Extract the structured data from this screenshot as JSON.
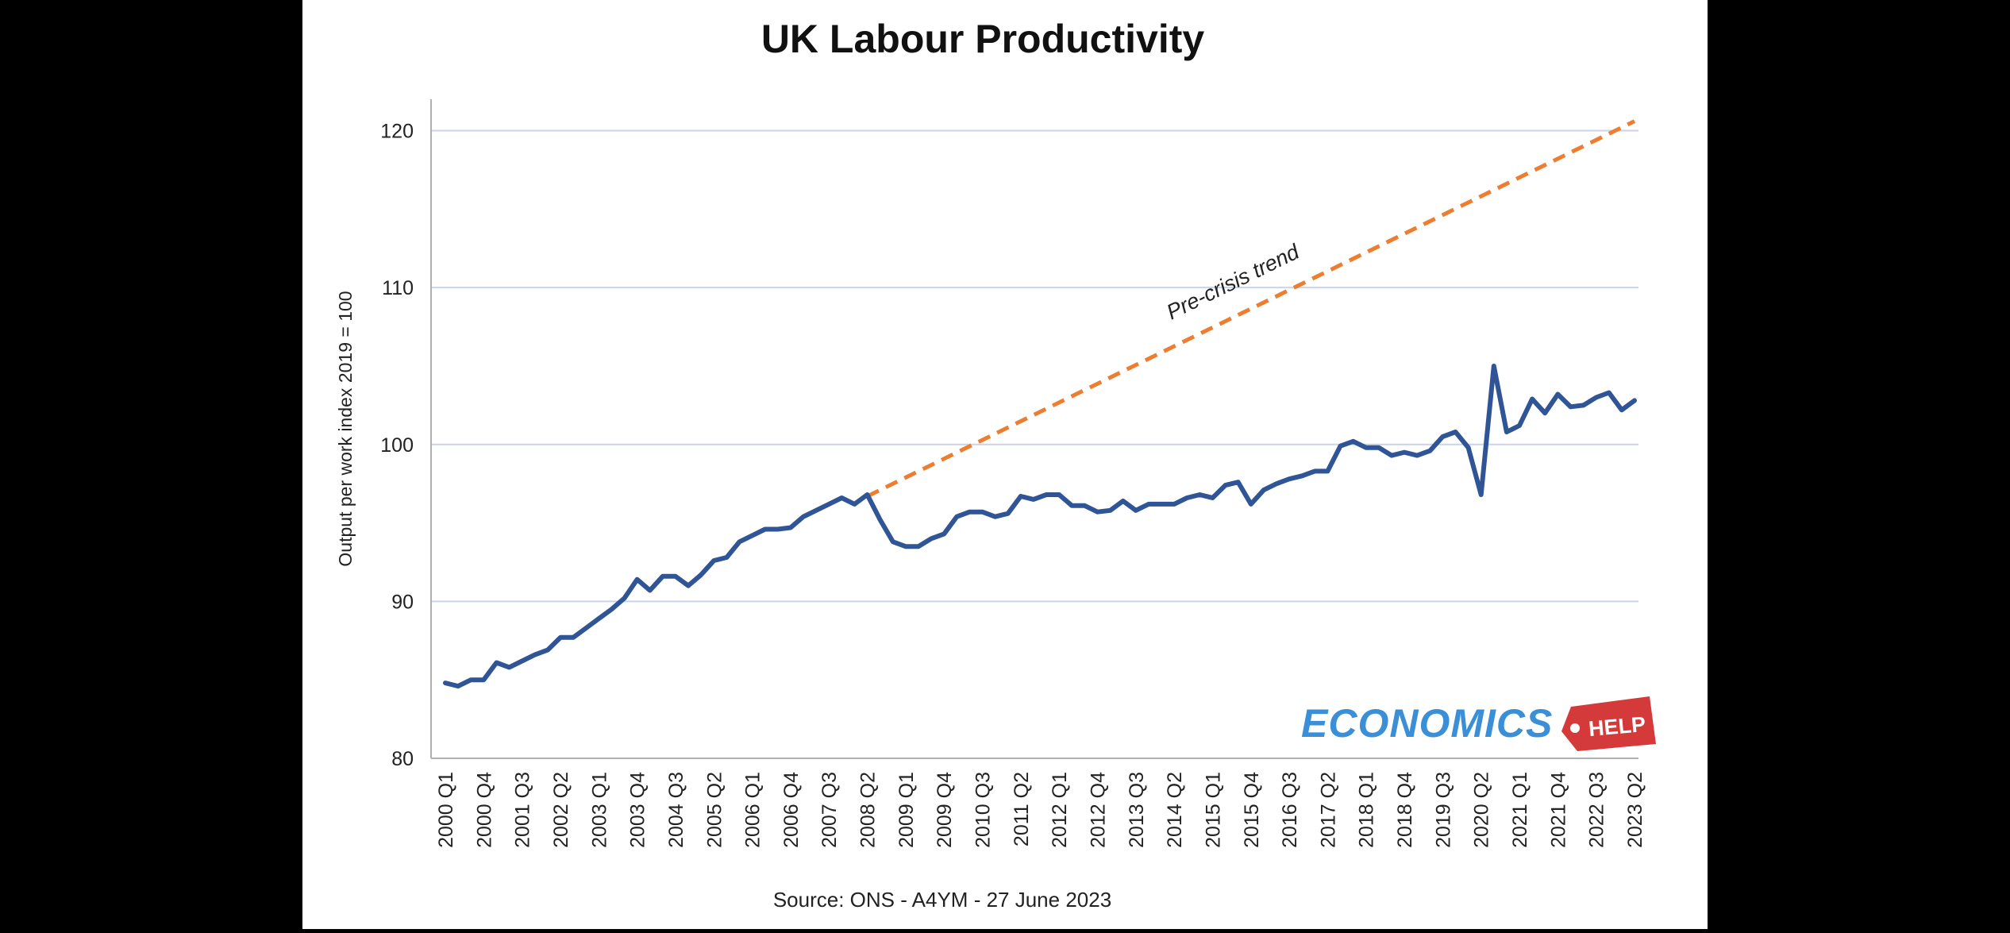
{
  "chart_data": {
    "type": "line",
    "title": "UK Labour Productivity",
    "xlabel": "",
    "ylabel": "Output per work index 2019 = 100",
    "ylim": [
      80,
      122
    ],
    "yticks": [
      80,
      90,
      100,
      110,
      120
    ],
    "grid": true,
    "source": "Source: ONS - A4YM - 27 June 2023",
    "x_tick_labels": [
      "2000 Q1",
      "2000 Q4",
      "2001 Q3",
      "2002 Q2",
      "2003 Q1",
      "2003 Q4",
      "2004 Q3",
      "2005 Q2",
      "2006 Q1",
      "2006 Q4",
      "2007 Q3",
      "2008 Q2",
      "2009 Q1",
      "2009 Q4",
      "2010 Q3",
      "2011 Q2",
      "2012 Q1",
      "2012 Q4",
      "2013 Q3",
      "2014 Q2",
      "2015 Q1",
      "2015 Q4",
      "2016 Q3",
      "2017 Q2",
      "2018 Q1",
      "2018 Q4",
      "2019 Q3",
      "2020 Q2",
      "2021 Q1",
      "2021 Q4",
      "2022 Q3",
      "2023 Q2"
    ],
    "x_start": "2000 Q1",
    "series": [
      {
        "color": "#2f5597",
        "values": [
          84.8,
          84.6,
          85.0,
          85.0,
          86.1,
          85.8,
          86.2,
          86.6,
          86.9,
          87.7,
          87.7,
          88.3,
          88.9,
          89.5,
          90.2,
          91.4,
          90.7,
          91.6,
          91.6,
          91.0,
          91.7,
          92.6,
          92.8,
          93.8,
          94.2,
          94.6,
          94.6,
          94.7,
          95.4,
          95.8,
          96.2,
          96.6,
          96.2,
          96.8,
          95.2,
          93.8,
          93.5,
          93.5,
          94.0,
          94.3,
          95.4,
          95.7,
          95.7,
          95.4,
          95.6,
          96.7,
          96.5,
          96.8,
          96.8,
          96.1,
          96.1,
          95.7,
          95.8,
          96.4,
          95.8,
          96.2,
          96.2,
          96.2,
          96.6,
          96.8,
          96.6,
          97.4,
          97.6,
          96.2,
          97.1,
          97.5,
          97.8,
          98.0,
          98.3,
          98.3,
          99.9,
          100.2,
          99.8,
          99.8,
          99.3,
          99.5,
          99.3,
          99.6,
          100.5,
          100.8,
          99.8,
          96.8,
          105.0,
          100.8,
          101.2,
          102.9,
          102.0,
          103.2,
          102.4,
          102.5,
          103.0,
          103.3,
          102.2,
          102.8
        ]
      },
      {
        "name": "Pre-crisis trend",
        "style": "dashed",
        "color": "#ed7d31",
        "x": [
          "2008 Q2",
          "2023 Q2"
        ],
        "values": [
          96.7,
          120.6
        ]
      }
    ],
    "annotations": [
      "Pre-crisis trend"
    ]
  },
  "logo": {
    "word": "ECONOMICS",
    "tag": "HELP",
    "word_color": "#3a8fd6",
    "tag_color": "#d43a3a"
  }
}
